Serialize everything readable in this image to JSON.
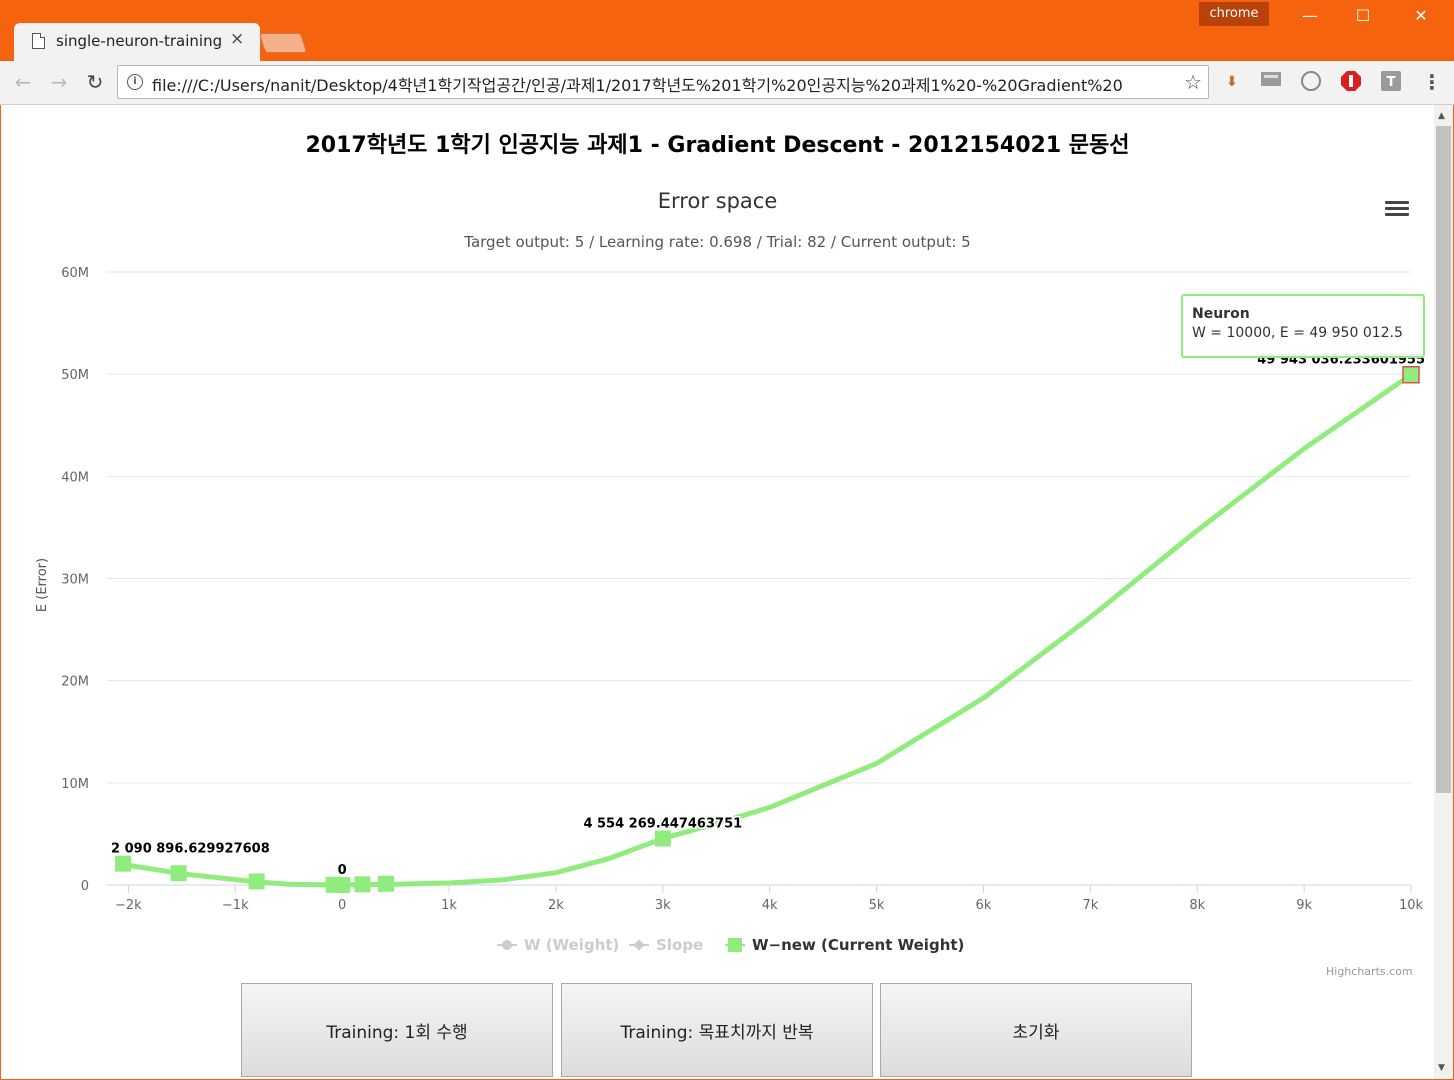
{
  "window": {
    "tab_title": "single-neuron-training",
    "tab_close": "×",
    "profile_label": "chrome",
    "minimize": "—",
    "maximize": "☐",
    "close": "✕"
  },
  "toolbar": {
    "url": "file:///C:/Users/nanit/Desktop/4학년1학기작업공간/인공/과제1/2017학년도%201학기%20인공지능%20과제1%20-%20Gradient%20",
    "back_icon": "arrow-left-icon",
    "forward_icon": "arrow-right-icon",
    "reload_icon": "reload-icon",
    "extensions": [
      "download-icon",
      "news-icon",
      "www-icon",
      "adblock-icon",
      "t-icon",
      "menu-icon"
    ]
  },
  "page": {
    "heading": "2017학년도 1학기 인공지능 과제1 - Gradient Descent - 2012154021 문동선",
    "credit": "Highcharts.com",
    "buttons": {
      "train_once": "Training: 1회 수행",
      "train_until": "Training: 목표치까지 반복",
      "reset": "초기화"
    }
  },
  "chart_data": {
    "type": "line",
    "title": "Error space",
    "subtitle": "Target output: 5 / Learning rate: 0.698 / Trial: 82 / Current output: 5",
    "xlabel": "",
    "ylabel": "E (Error)",
    "xlim": [
      -2200,
      10000
    ],
    "ylim": [
      0,
      60000000
    ],
    "x_ticks": [
      "−2k",
      "−1k",
      "0",
      "1k",
      "2k",
      "3k",
      "4k",
      "5k",
      "6k",
      "7k",
      "8k",
      "9k",
      "10k"
    ],
    "y_ticks": [
      "0",
      "10M",
      "20M",
      "30M",
      "40M",
      "50M",
      "60M"
    ],
    "grid": true,
    "legend_placement": "bottom",
    "legend": [
      {
        "name": "W (Weight)",
        "visible": false
      },
      {
        "name": "Slope",
        "visible": false
      },
      {
        "name": "W−new (Current Weight)",
        "visible": true
      }
    ],
    "series": [
      {
        "name": "W−new (Current Weight)",
        "color": "#90ed7d",
        "curve_x": [
          -2100,
          -1500,
          -800,
          -500,
          0,
          500,
          1000,
          1500,
          2000,
          2500,
          3000,
          3500,
          4000,
          5000,
          6000,
          7000,
          8000,
          9000,
          10000
        ],
        "curve_y": [
          2090896,
          1100000,
          300000,
          80000,
          0,
          80000,
          200000,
          500000,
          1200000,
          2600000,
          4554269,
          6000000,
          7600000,
          11900000,
          18300000,
          26200000,
          34700000,
          42700000,
          49943036
        ],
        "markers_x": [
          -2050,
          -1530,
          -800,
          -80,
          0,
          190,
          410,
          3000,
          10000
        ],
        "markers_y": [
          2090896,
          1150000,
          350000,
          20000,
          0,
          60000,
          120000,
          4554269,
          49943036
        ],
        "data_labels": [
          {
            "x": -2050,
            "y": 2090896,
            "text": "2 090 896.629927608"
          },
          {
            "x": 0,
            "y": 0,
            "text": "0"
          },
          {
            "x": 3000,
            "y": 4554269,
            "text": "4 554 269.447463751"
          },
          {
            "x": 10000,
            "y": 49943036,
            "text": "49 943 036.233601955"
          }
        ]
      }
    ],
    "tooltip": {
      "series_name": "Neuron",
      "point_text": "W = 10000, E = 49 950 012.5"
    }
  }
}
